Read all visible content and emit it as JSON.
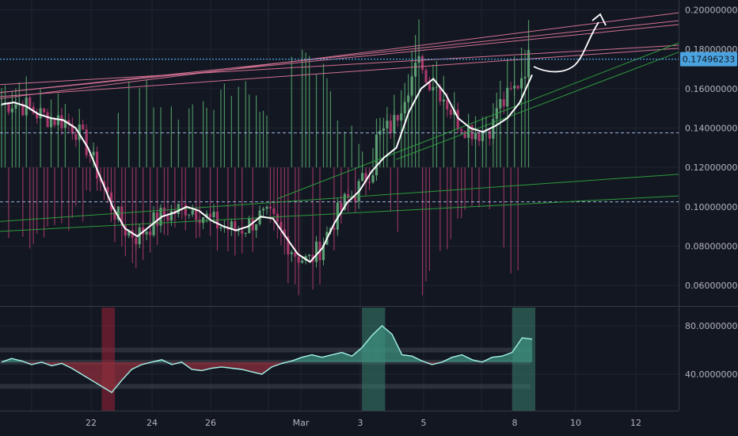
{
  "chart_data": [
    {
      "type": "candlestick",
      "panel": "price",
      "y_axis": {
        "range": [
          0.05,
          0.205
        ],
        "ticks": [
          0.2,
          0.18,
          0.16,
          0.14,
          0.12,
          0.1,
          0.08,
          0.06
        ],
        "tick_labels": [
          "0.20000000",
          "0.18000000",
          "0.16000000",
          "0.14000000",
          "0.12000000",
          "0.10000000",
          "0.08000000",
          "0.06000000"
        ]
      },
      "x_axis": {
        "tick_labels": [
          "22",
          "24",
          "26",
          "Mar",
          "3",
          "5",
          "8",
          "10",
          "12"
        ]
      },
      "current_price": 0.17496233,
      "current_price_label": "0.17496233",
      "colors": {
        "up": "#5d9f74",
        "down": "#a8386a",
        "up_volume": "#54a76a",
        "down_volume": "#a8386a",
        "ma": "#ffffff",
        "trendline_pink": "#d07090",
        "trendline_green": "#2e9a3c",
        "dashed": "#9bb6e0",
        "price_line": "#4aa3df",
        "annotation": "#ffffff"
      },
      "horizontal_levels": [
        0.1375,
        0.1025
      ],
      "moving_average": [
        0.152,
        0.153,
        0.151,
        0.147,
        0.145,
        0.144,
        0.14,
        0.13,
        0.115,
        0.1,
        0.089,
        0.085,
        0.09,
        0.095,
        0.097,
        0.1,
        0.098,
        0.093,
        0.09,
        0.088,
        0.09,
        0.095,
        0.094,
        0.085,
        0.076,
        0.072,
        0.079,
        0.092,
        0.102,
        0.108,
        0.118,
        0.125,
        0.13,
        0.148,
        0.16,
        0.165,
        0.157,
        0.145,
        0.14,
        0.138,
        0.141,
        0.145,
        0.153,
        0.167
      ],
      "candles_count": 150,
      "candles_note": "Daily candles from approx Feb 19 to Mar 8; ranges between 0.075 and 0.185"
    },
    {
      "type": "line",
      "panel": "oscillator",
      "y_axis": {
        "range": [
          10,
          95
        ],
        "ticks": [
          80,
          40
        ],
        "tick_labels": [
          "80.00000000",
          "40.00000000"
        ]
      },
      "bands": [
        60,
        50,
        30
      ],
      "values": [
        50,
        53,
        51,
        48,
        50,
        47,
        49,
        45,
        40,
        35,
        30,
        25,
        35,
        44,
        48,
        50,
        52,
        48,
        50,
        44,
        43,
        45,
        46,
        45,
        44,
        42,
        40,
        46,
        49,
        51,
        54,
        56,
        54,
        56,
        58,
        55,
        62,
        72,
        80,
        73,
        56,
        55,
        51,
        48,
        50,
        54,
        56,
        52,
        50,
        54,
        55,
        58,
        70,
        69
      ],
      "shaded_columns": [
        {
          "start_index": 10,
          "end_index": 11,
          "color": "#9b2335"
        },
        {
          "start_index": 36,
          "end_index": 38,
          "color": "#3a7f6b"
        },
        {
          "start_index": 51,
          "end_index": 53,
          "color": "#3a7f6b"
        }
      ]
    }
  ]
}
